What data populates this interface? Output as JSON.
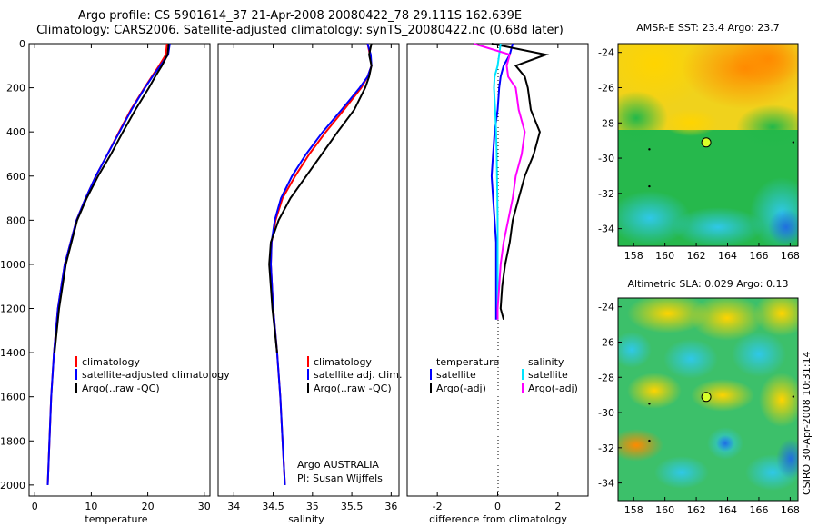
{
  "header": {
    "line1": "Argo profile: CS 5901614_37 21-Apr-2008 20080422_78 29.111S 162.639E",
    "line2": "Climatology: CARS2006. Satellite-adjusted climatology: synTS_20080422.nc (0.68d later)"
  },
  "stamp": "CSIRO 30-Apr-2008 10:31:14",
  "credits": {
    "line1": "Argo AUSTRALIA",
    "line2": "PI: Susan Wijffels"
  },
  "colors": {
    "climatology": "#ff0000",
    "satellite": "#0000ff",
    "argo": "#000000",
    "sat_salinity": "#00e5ff",
    "argo_salinity_diff": "#ff00ff"
  },
  "chart_data": [
    {
      "type": "line",
      "id": "temperature",
      "xlabel": "temperature",
      "xlim": [
        -1,
        31
      ],
      "ylim": [
        2050,
        0
      ],
      "x_ticks": [
        "0",
        "10",
        "20",
        "30"
      ],
      "y_ticks": [
        "0",
        "200",
        "400",
        "600",
        "800",
        "1000",
        "1200",
        "1400",
        "1600",
        "1800",
        "2000"
      ],
      "legend": [
        "climatology",
        "satellite-adjusted climatology",
        "Argo(..raw -QC)"
      ],
      "depth": [
        0,
        50,
        100,
        150,
        200,
        300,
        400,
        500,
        600,
        700,
        800,
        1000,
        1200,
        1400,
        1600,
        1800,
        2000
      ],
      "series": [
        {
          "name": "climatology",
          "color": "#ff0000",
          "values": [
            23.4,
            23.2,
            22.0,
            20.7,
            19.4,
            17.0,
            14.9,
            12.9,
            10.8,
            9.0,
            7.4,
            5.3,
            4.1,
            3.4,
            2.9,
            2.6,
            2.3
          ]
        },
        {
          "name": "satellite-adjusted climatology",
          "color": "#0000ff",
          "values": [
            23.9,
            23.6,
            22.2,
            20.8,
            19.5,
            17.1,
            15.0,
            12.9,
            10.8,
            9.0,
            7.4,
            5.3,
            4.1,
            3.4,
            2.9,
            2.6,
            2.3
          ]
        },
        {
          "name": "Argo(..raw -QC)",
          "color": "#000000",
          "values": [
            23.7,
            23.5,
            22.5,
            21.3,
            20.2,
            17.8,
            15.6,
            13.5,
            11.2,
            9.2,
            7.5,
            5.5,
            4.3,
            3.5,
            null,
            null,
            null
          ]
        }
      ]
    },
    {
      "type": "line",
      "id": "salinity",
      "xlabel": "salinity",
      "xlim": [
        33.8,
        36.1
      ],
      "ylim": [
        2050,
        0
      ],
      "x_ticks": [
        "34",
        "34.5",
        "35",
        "35.5",
        "36"
      ],
      "legend": [
        "climatology",
        "satellite adj. clim.",
        "Argo(..raw -QC)"
      ],
      "depth": [
        0,
        50,
        100,
        150,
        200,
        300,
        400,
        500,
        600,
        700,
        800,
        900,
        1000,
        1200,
        1400,
        1600,
        1800,
        2000
      ],
      "series": [
        {
          "name": "climatology",
          "color": "#ff0000",
          "values": [
            35.7,
            35.73,
            35.75,
            35.7,
            35.62,
            35.4,
            35.17,
            34.96,
            34.78,
            34.62,
            34.53,
            34.48,
            34.47,
            34.5,
            34.55,
            34.59,
            34.62,
            34.65
          ]
        },
        {
          "name": "satellite adj. clim.",
          "color": "#0000ff",
          "values": [
            35.7,
            35.74,
            35.75,
            35.7,
            35.6,
            35.37,
            35.13,
            34.92,
            34.74,
            34.6,
            34.52,
            34.48,
            34.47,
            34.5,
            34.55,
            34.59,
            34.62,
            34.65
          ]
        },
        {
          "name": "Argo(..raw -QC)",
          "color": "#000000",
          "values": [
            35.75,
            35.72,
            35.75,
            35.72,
            35.67,
            35.53,
            35.32,
            35.12,
            34.92,
            34.72,
            34.57,
            34.47,
            34.45,
            34.49,
            34.55,
            null,
            null,
            null
          ]
        }
      ]
    },
    {
      "type": "line",
      "id": "difference",
      "xlabel": "difference from climatology",
      "xlim": [
        -3,
        3
      ],
      "ylim": [
        2050,
        0
      ],
      "x_ticks": [
        "-2",
        "0",
        "2"
      ],
      "legend_headers": [
        "temperature",
        "salinity"
      ],
      "legend": [
        "satellite",
        "Argo(-adj)",
        "satellite",
        "Argo(-adj)"
      ],
      "depth": [
        0,
        50,
        100,
        150,
        200,
        300,
        400,
        500,
        600,
        700,
        800,
        900,
        1000,
        1100,
        1200,
        1250
      ],
      "series": [
        {
          "name": "temperature satellite",
          "color": "#0000ff",
          "values": [
            0.5,
            0.4,
            0.2,
            0.1,
            0.05,
            0.0,
            -0.1,
            -0.15,
            -0.2,
            -0.15,
            -0.1,
            -0.05,
            -0.05,
            -0.05,
            -0.05,
            -0.05
          ]
        },
        {
          "name": "temperature Argo(-adj)",
          "color": "#000000",
          "values": [
            -0.2,
            1.6,
            0.6,
            0.9,
            1.0,
            1.1,
            1.4,
            1.2,
            0.9,
            0.7,
            0.5,
            0.4,
            0.25,
            0.15,
            0.1,
            0.2
          ]
        },
        {
          "name": "salinity satellite",
          "color": "#00e5ff",
          "values": [
            0.1,
            0.05,
            0.0,
            -0.1,
            -0.12,
            -0.08,
            -0.05,
            -0.03,
            -0.02,
            -0.01,
            0.0,
            0.0,
            0.0,
            0.0,
            0.0,
            0.0
          ]
        },
        {
          "name": "salinity Argo(-adj)",
          "color": "#ff00ff",
          "values": [
            -0.8,
            0.4,
            0.3,
            0.35,
            0.6,
            0.7,
            0.9,
            0.8,
            0.6,
            0.5,
            0.35,
            0.2,
            0.1,
            0.05,
            0.0,
            0.0
          ]
        }
      ]
    },
    {
      "type": "heatmap",
      "id": "sst-map",
      "title": "AMSR-E SST: 23.4 Argo: 23.7",
      "xlim": [
        157,
        168.5
      ],
      "ylim": [
        -35,
        -23.5
      ],
      "x_ticks": [
        "158",
        "160",
        "162",
        "164",
        "166",
        "168"
      ],
      "y_ticks": [
        "-24",
        "-26",
        "-28",
        "-30",
        "-32",
        "-34"
      ],
      "marker": {
        "lon": 162.639,
        "lat": -29.111
      },
      "dots": [
        {
          "lon": 159.0,
          "lat": -29.5
        },
        {
          "lon": 159.0,
          "lat": -31.6
        },
        {
          "lon": 168.2,
          "lat": -29.1
        }
      ]
    },
    {
      "type": "heatmap",
      "id": "sla-map",
      "title": "Altimetric SLA: 0.029 Argo: 0.13",
      "xlim": [
        157,
        168.5
      ],
      "ylim": [
        -35,
        -23.5
      ],
      "x_ticks": [
        "158",
        "160",
        "162",
        "164",
        "166",
        "168"
      ],
      "y_ticks": [
        "-24",
        "-26",
        "-28",
        "-30",
        "-32",
        "-34"
      ],
      "marker": {
        "lon": 162.639,
        "lat": -29.111
      },
      "dots": [
        {
          "lon": 159.0,
          "lat": -29.5
        },
        {
          "lon": 159.0,
          "lat": -31.6
        },
        {
          "lon": 168.2,
          "lat": -29.1
        }
      ]
    }
  ]
}
